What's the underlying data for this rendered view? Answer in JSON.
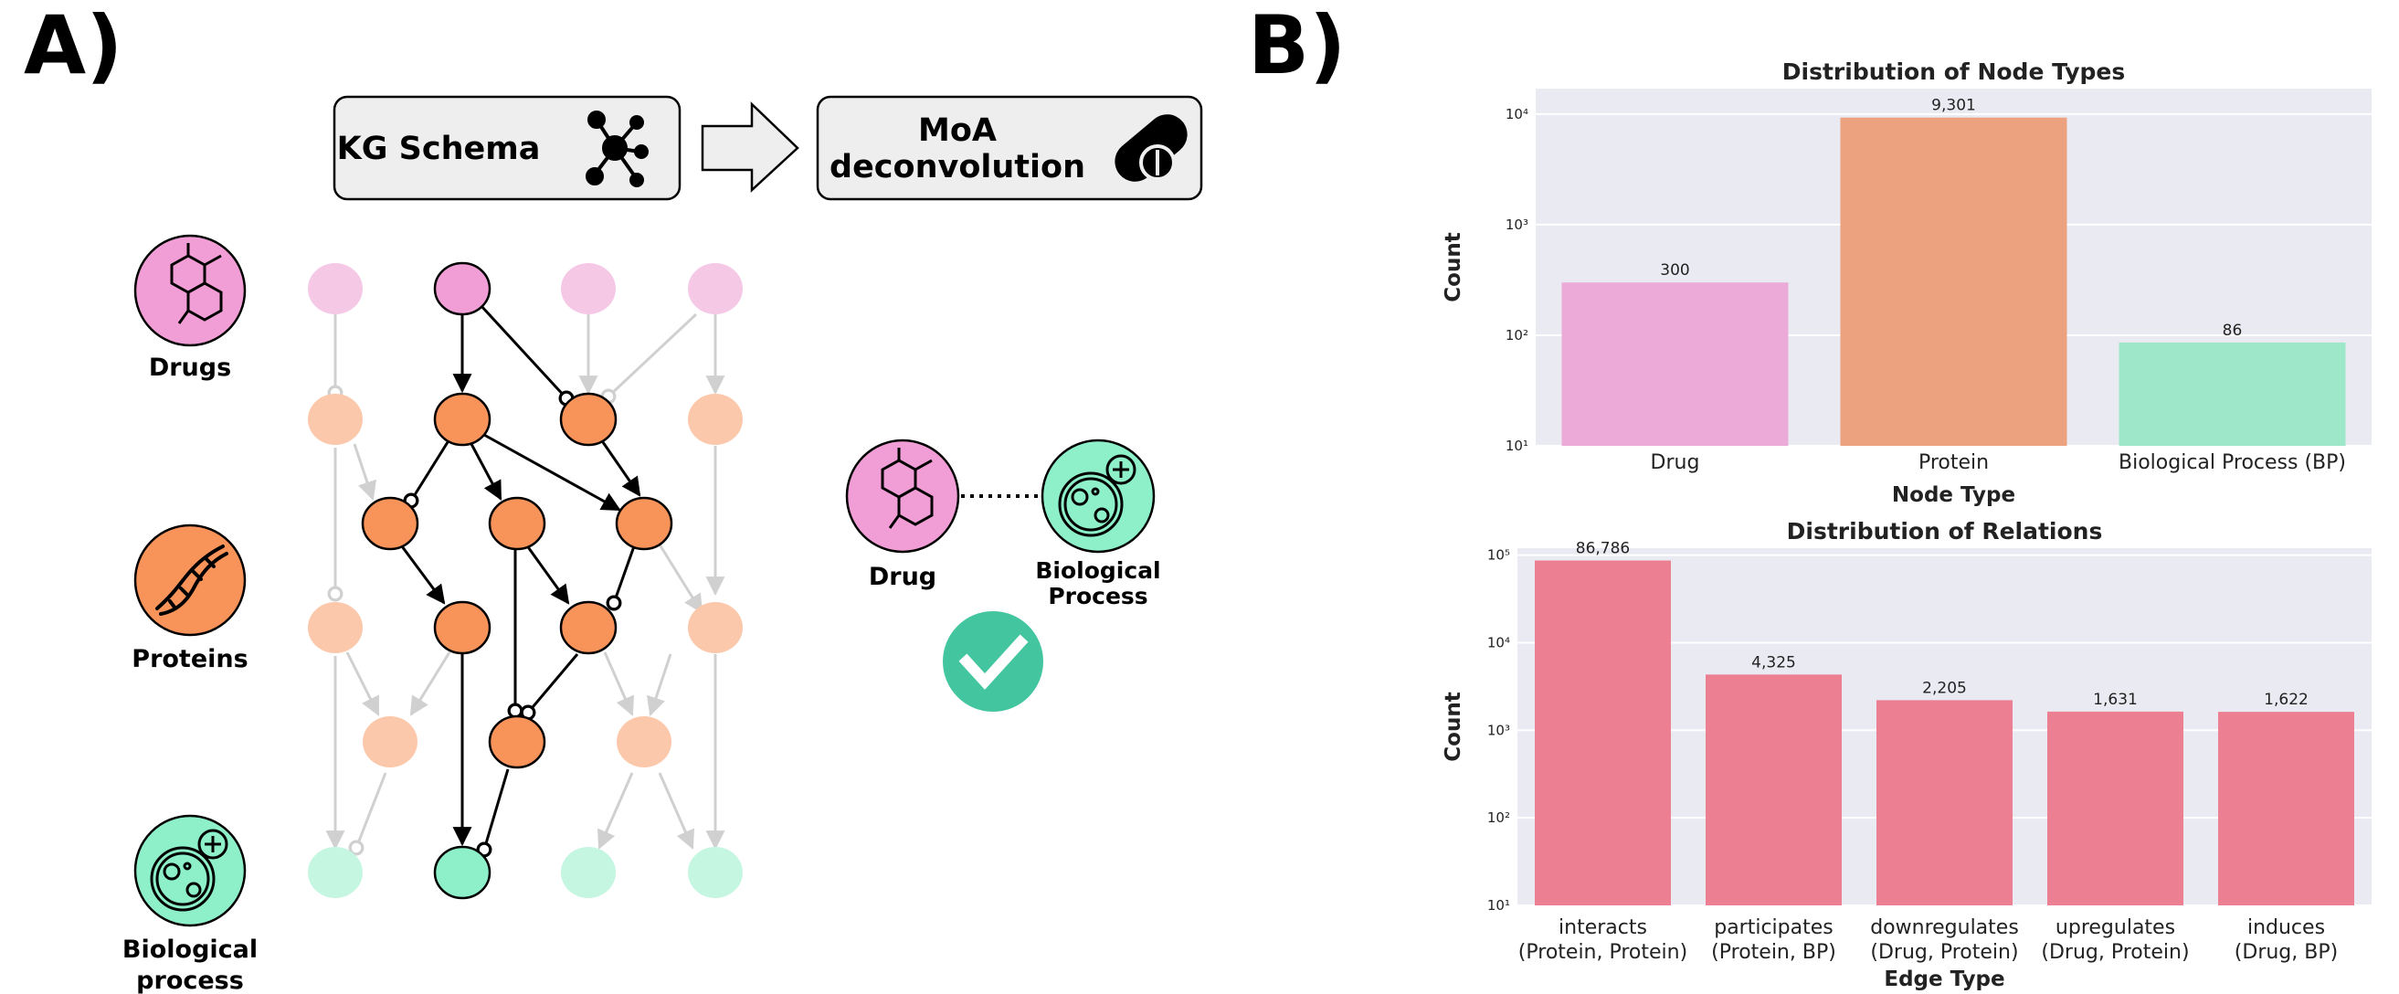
{
  "panel_a": {
    "label": "A)",
    "schema_box": "KG Schema",
    "moa_box_line1": "MoA",
    "moa_box_line2": "deconvolution",
    "legend": {
      "drugs": "Drugs",
      "proteins": "Proteins",
      "bp_line1": "Biological",
      "bp_line2": "process"
    },
    "pair": {
      "drug": "Drug",
      "bp_line1": "Biological",
      "bp_line2": "Process"
    },
    "colors": {
      "drug": "#f29ed6",
      "drug_faded": "#f5c8e6",
      "protein": "#f8935a",
      "protein_faded": "#fcc8ab",
      "bp": "#8ef0c9",
      "bp_faded": "#c5f6e1",
      "check": "#43c6a0"
    },
    "icons": [
      "network-icon",
      "pill-icon",
      "molecule-icon",
      "dna-icon",
      "cell-icon",
      "check-icon",
      "arrow-icon"
    ]
  },
  "panel_b": {
    "label": "B)"
  },
  "chart_data": [
    {
      "type": "bar",
      "title": "Distribution of Node Types",
      "xlabel": "Node Type",
      "ylabel": "Count",
      "yscale": "log",
      "ylim": [
        10,
        17000
      ],
      "ytick_labels": [
        "10¹",
        "10²",
        "10³",
        "10⁴"
      ],
      "ytick_values": [
        10,
        100,
        1000,
        10000
      ],
      "categories": [
        "Drug",
        "Protein",
        "Biological Process (BP)"
      ],
      "values": [
        300,
        9301,
        86
      ],
      "value_labels": [
        "300",
        "9,301",
        "86"
      ],
      "colors": [
        "#ebaad8",
        "#eca17f",
        "#9ee8c9"
      ],
      "grid": true,
      "background": "#eaeaf2"
    },
    {
      "type": "bar",
      "title": "Distribution of Relations",
      "xlabel": "Edge Type",
      "ylabel": "Count",
      "yscale": "log",
      "ylim": [
        10,
        120000
      ],
      "ytick_labels": [
        "10¹",
        "10²",
        "10³",
        "10⁴",
        "10⁵"
      ],
      "ytick_values": [
        10,
        100,
        1000,
        10000,
        100000
      ],
      "categories": [
        [
          "interacts",
          "(Protein, Protein)"
        ],
        [
          "participates",
          "(Protein, BP)"
        ],
        [
          "downregulates",
          "(Drug, Protein)"
        ],
        [
          "upregulates",
          "(Drug, Protein)"
        ],
        [
          "induces",
          "(Drug, BP)"
        ]
      ],
      "values": [
        86786,
        4325,
        2205,
        1631,
        1622
      ],
      "value_labels": [
        "86,786",
        "4,325",
        "2,205",
        "1,631",
        "1,622"
      ],
      "colors": [
        "#ed7f92",
        "#ed7f92",
        "#ed7f92",
        "#ed7f92",
        "#ed7f92"
      ],
      "grid": true,
      "background": "#eaeaf2"
    }
  ]
}
